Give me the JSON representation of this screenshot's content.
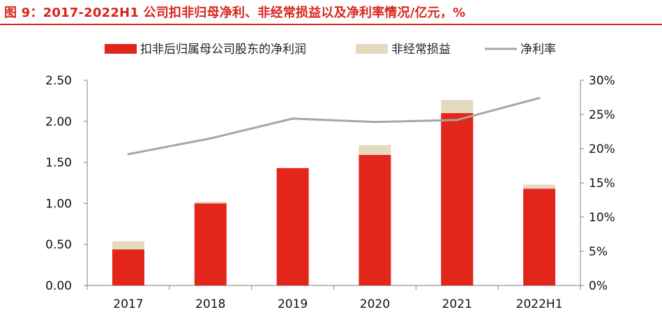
{
  "title": "图 9：2017-2022H1 公司扣非归母净利、非经常损益以及净利率情况/亿元，%",
  "colors": {
    "title": "#d6261d",
    "main_bar": "#e2261b",
    "nonrecurring_bar": "#e5dac0",
    "line": "#a6a6a6"
  },
  "chart_data": {
    "type": "bar",
    "categories": [
      "2017",
      "2018",
      "2019",
      "2020",
      "2021",
      "2022H1"
    ],
    "series": [
      {
        "name": "扣非后归属母公司股东的净利润",
        "kind": "bar",
        "stack": "total",
        "axis": "left",
        "values": [
          0.44,
          1.0,
          1.43,
          1.59,
          2.1,
          1.18
        ]
      },
      {
        "name": "非经常损益",
        "kind": "bar",
        "stack": "total",
        "axis": "left",
        "values": [
          0.1,
          0.02,
          0.0,
          0.12,
          0.16,
          0.05
        ]
      },
      {
        "name": "净利率",
        "kind": "line",
        "axis": "right",
        "values": [
          19.2,
          21.5,
          24.4,
          23.9,
          24.2,
          27.4
        ]
      }
    ],
    "left_axis": {
      "ylim": [
        0,
        2.5
      ],
      "ticks": [
        "0.00",
        "0.50",
        "1.00",
        "1.50",
        "2.00",
        "2.50"
      ]
    },
    "right_axis": {
      "ylim": [
        0,
        30
      ],
      "ticks": [
        "0%",
        "5%",
        "10%",
        "15%",
        "20%",
        "25%",
        "30%"
      ]
    },
    "legend_position": "top-center",
    "grid": false
  }
}
